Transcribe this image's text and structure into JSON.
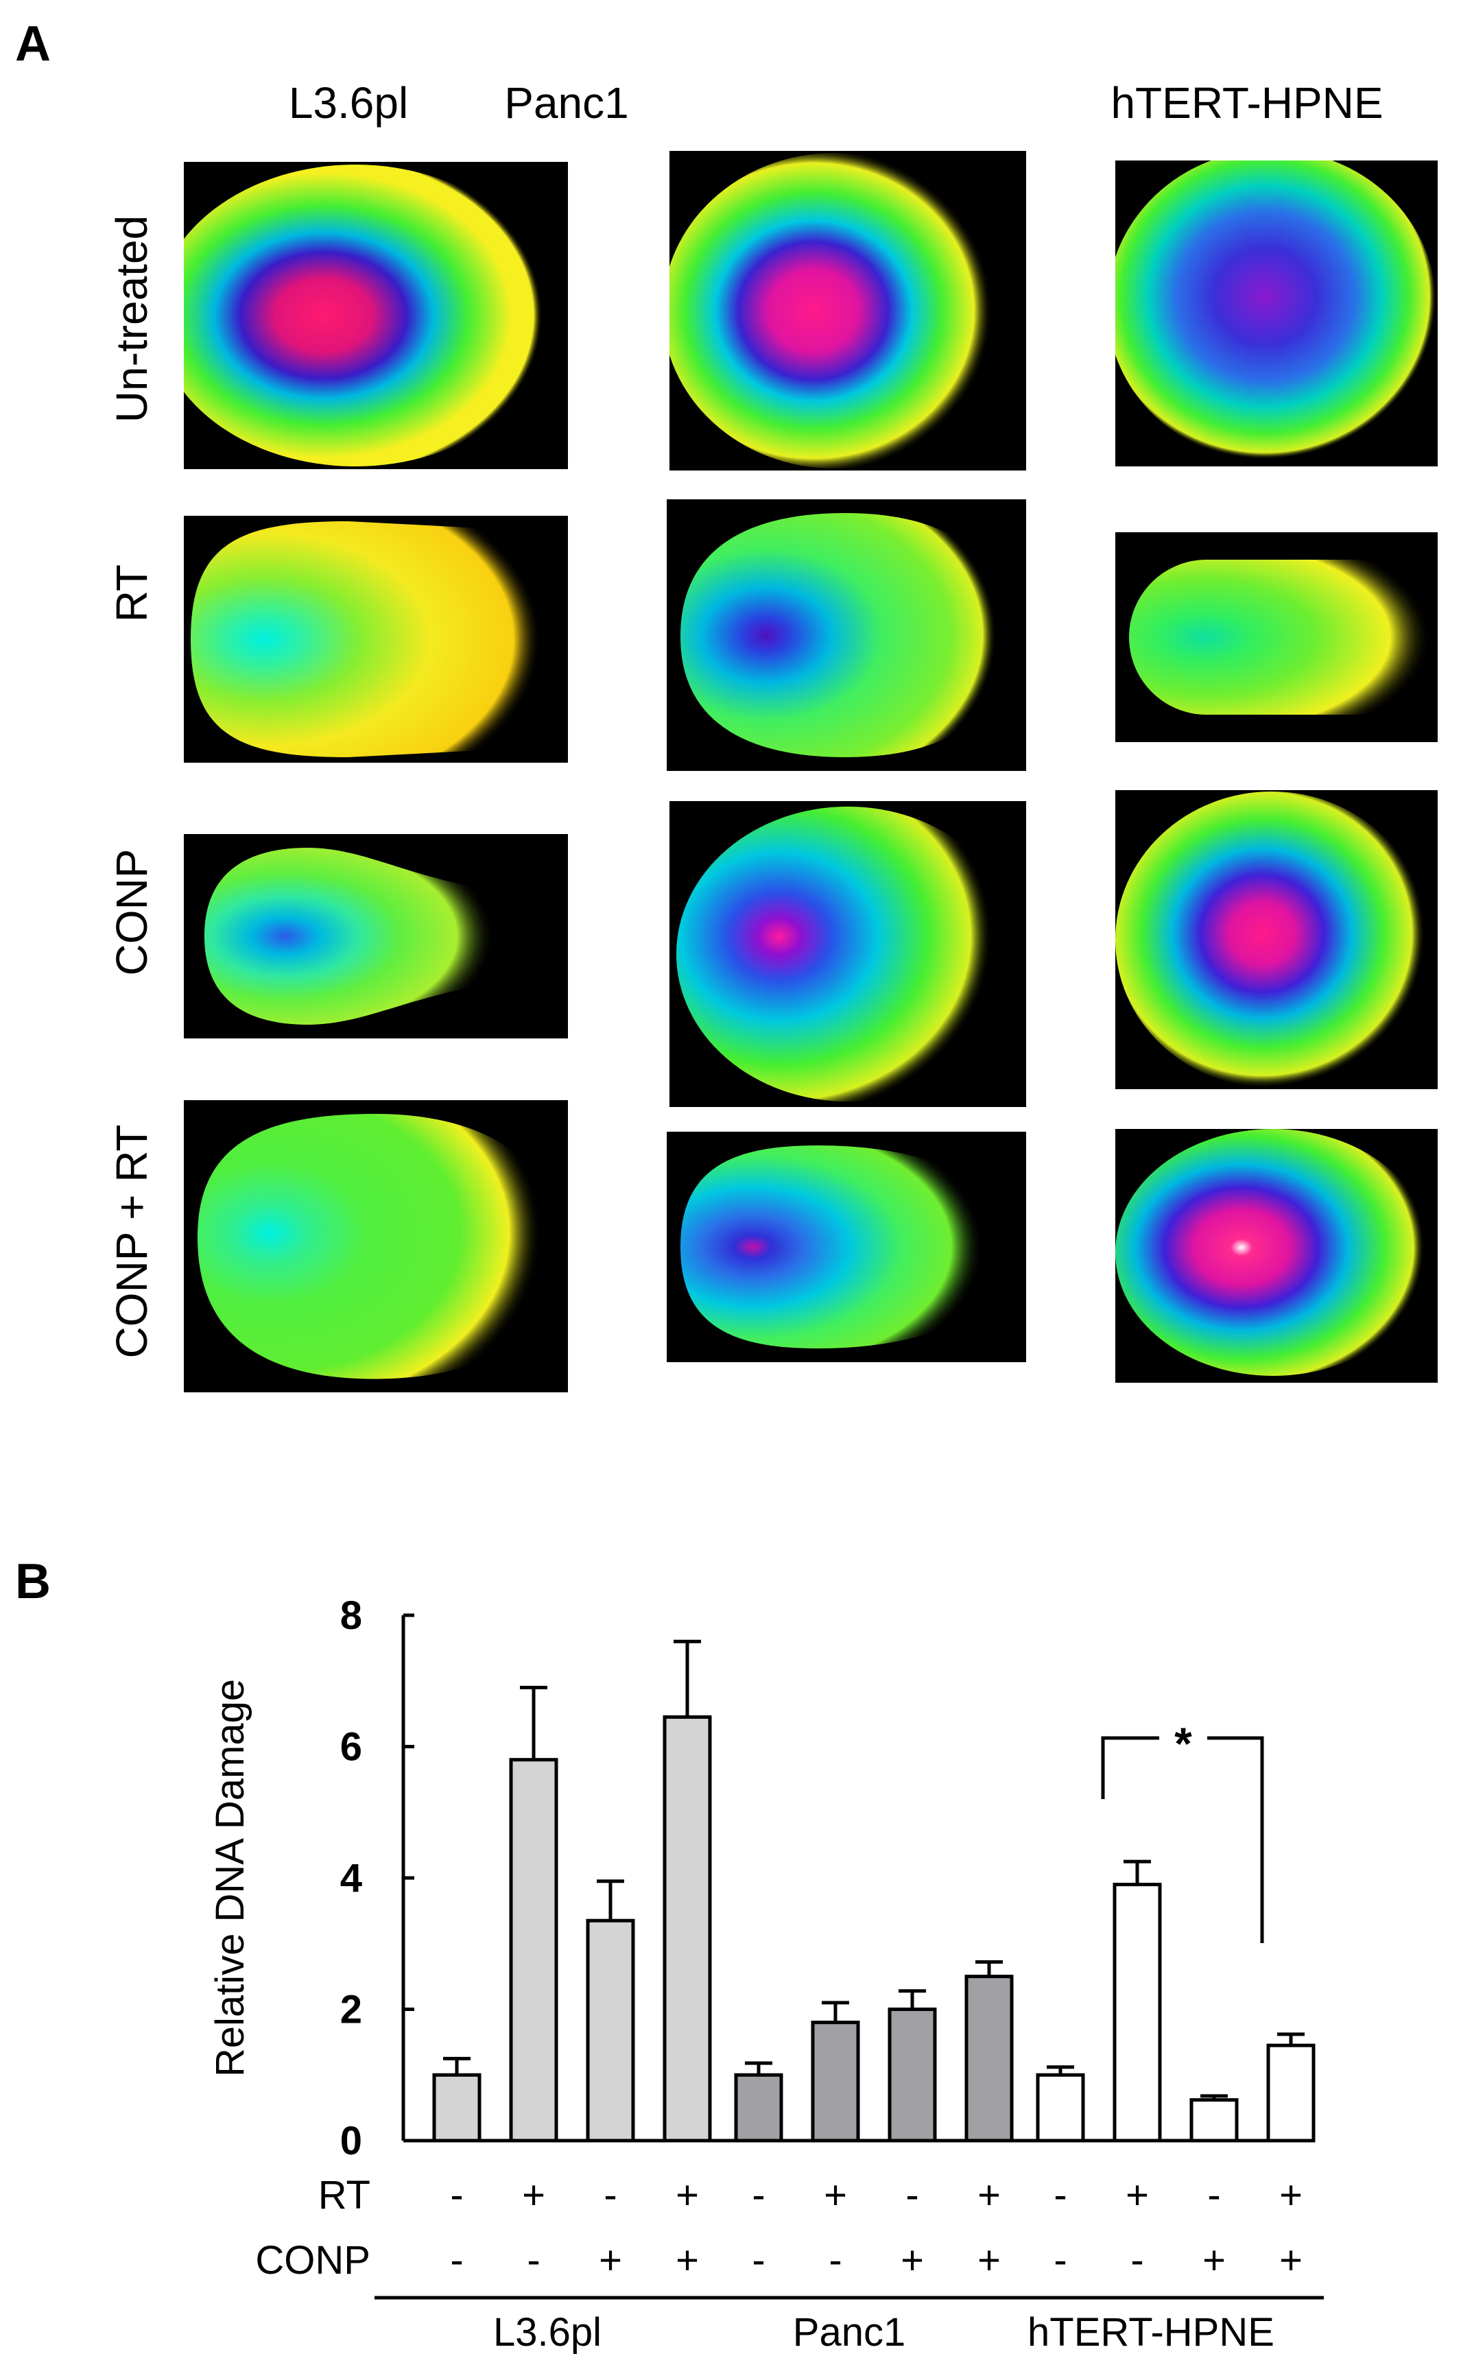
{
  "panel_a": {
    "letter": "A",
    "columns": [
      "L3.6pl",
      "Panc1",
      "hTERT-HPNE"
    ],
    "rows": [
      "Un-treated",
      "RT",
      "CONP",
      "CONP + RT"
    ]
  },
  "panel_b": {
    "letter": "B"
  },
  "chart_data": {
    "type": "bar",
    "title": "",
    "ylabel": "Relative DNA Damage",
    "ylim": [
      0,
      8
    ],
    "yticks": [
      0,
      2,
      4,
      6,
      8
    ],
    "row_labels": [
      "RT",
      "CONP"
    ],
    "groups": [
      {
        "name": "L3.6pl",
        "color": "#d4d4d4",
        "values": [
          1.0,
          5.8,
          3.35,
          6.45
        ],
        "errors": [
          0.25,
          1.1,
          0.6,
          1.15
        ],
        "rt": [
          "-",
          "+",
          "-",
          "+"
        ],
        "conp": [
          "-",
          "-",
          "+",
          "+"
        ]
      },
      {
        "name": "Panc1",
        "color": "#a1a1a5",
        "values": [
          1.0,
          1.8,
          2.0,
          2.5
        ],
        "errors": [
          0.18,
          0.3,
          0.28,
          0.22
        ],
        "rt": [
          "-",
          "+",
          "-",
          "+"
        ],
        "conp": [
          "-",
          "-",
          "+",
          "+"
        ]
      },
      {
        "name": "hTERT-HPNE",
        "color": "#ffffff",
        "values": [
          1.0,
          3.9,
          0.62,
          1.45
        ],
        "errors": [
          0.12,
          0.35,
          0.06,
          0.17
        ],
        "rt": [
          "-",
          "+",
          "-",
          "+"
        ],
        "conp": [
          "-",
          "-",
          "+",
          "+"
        ]
      }
    ],
    "annotations": [
      {
        "text": "*",
        "between": "hTERT-HPNE RT+ CONP- vs RT+ CONP+"
      }
    ]
  }
}
